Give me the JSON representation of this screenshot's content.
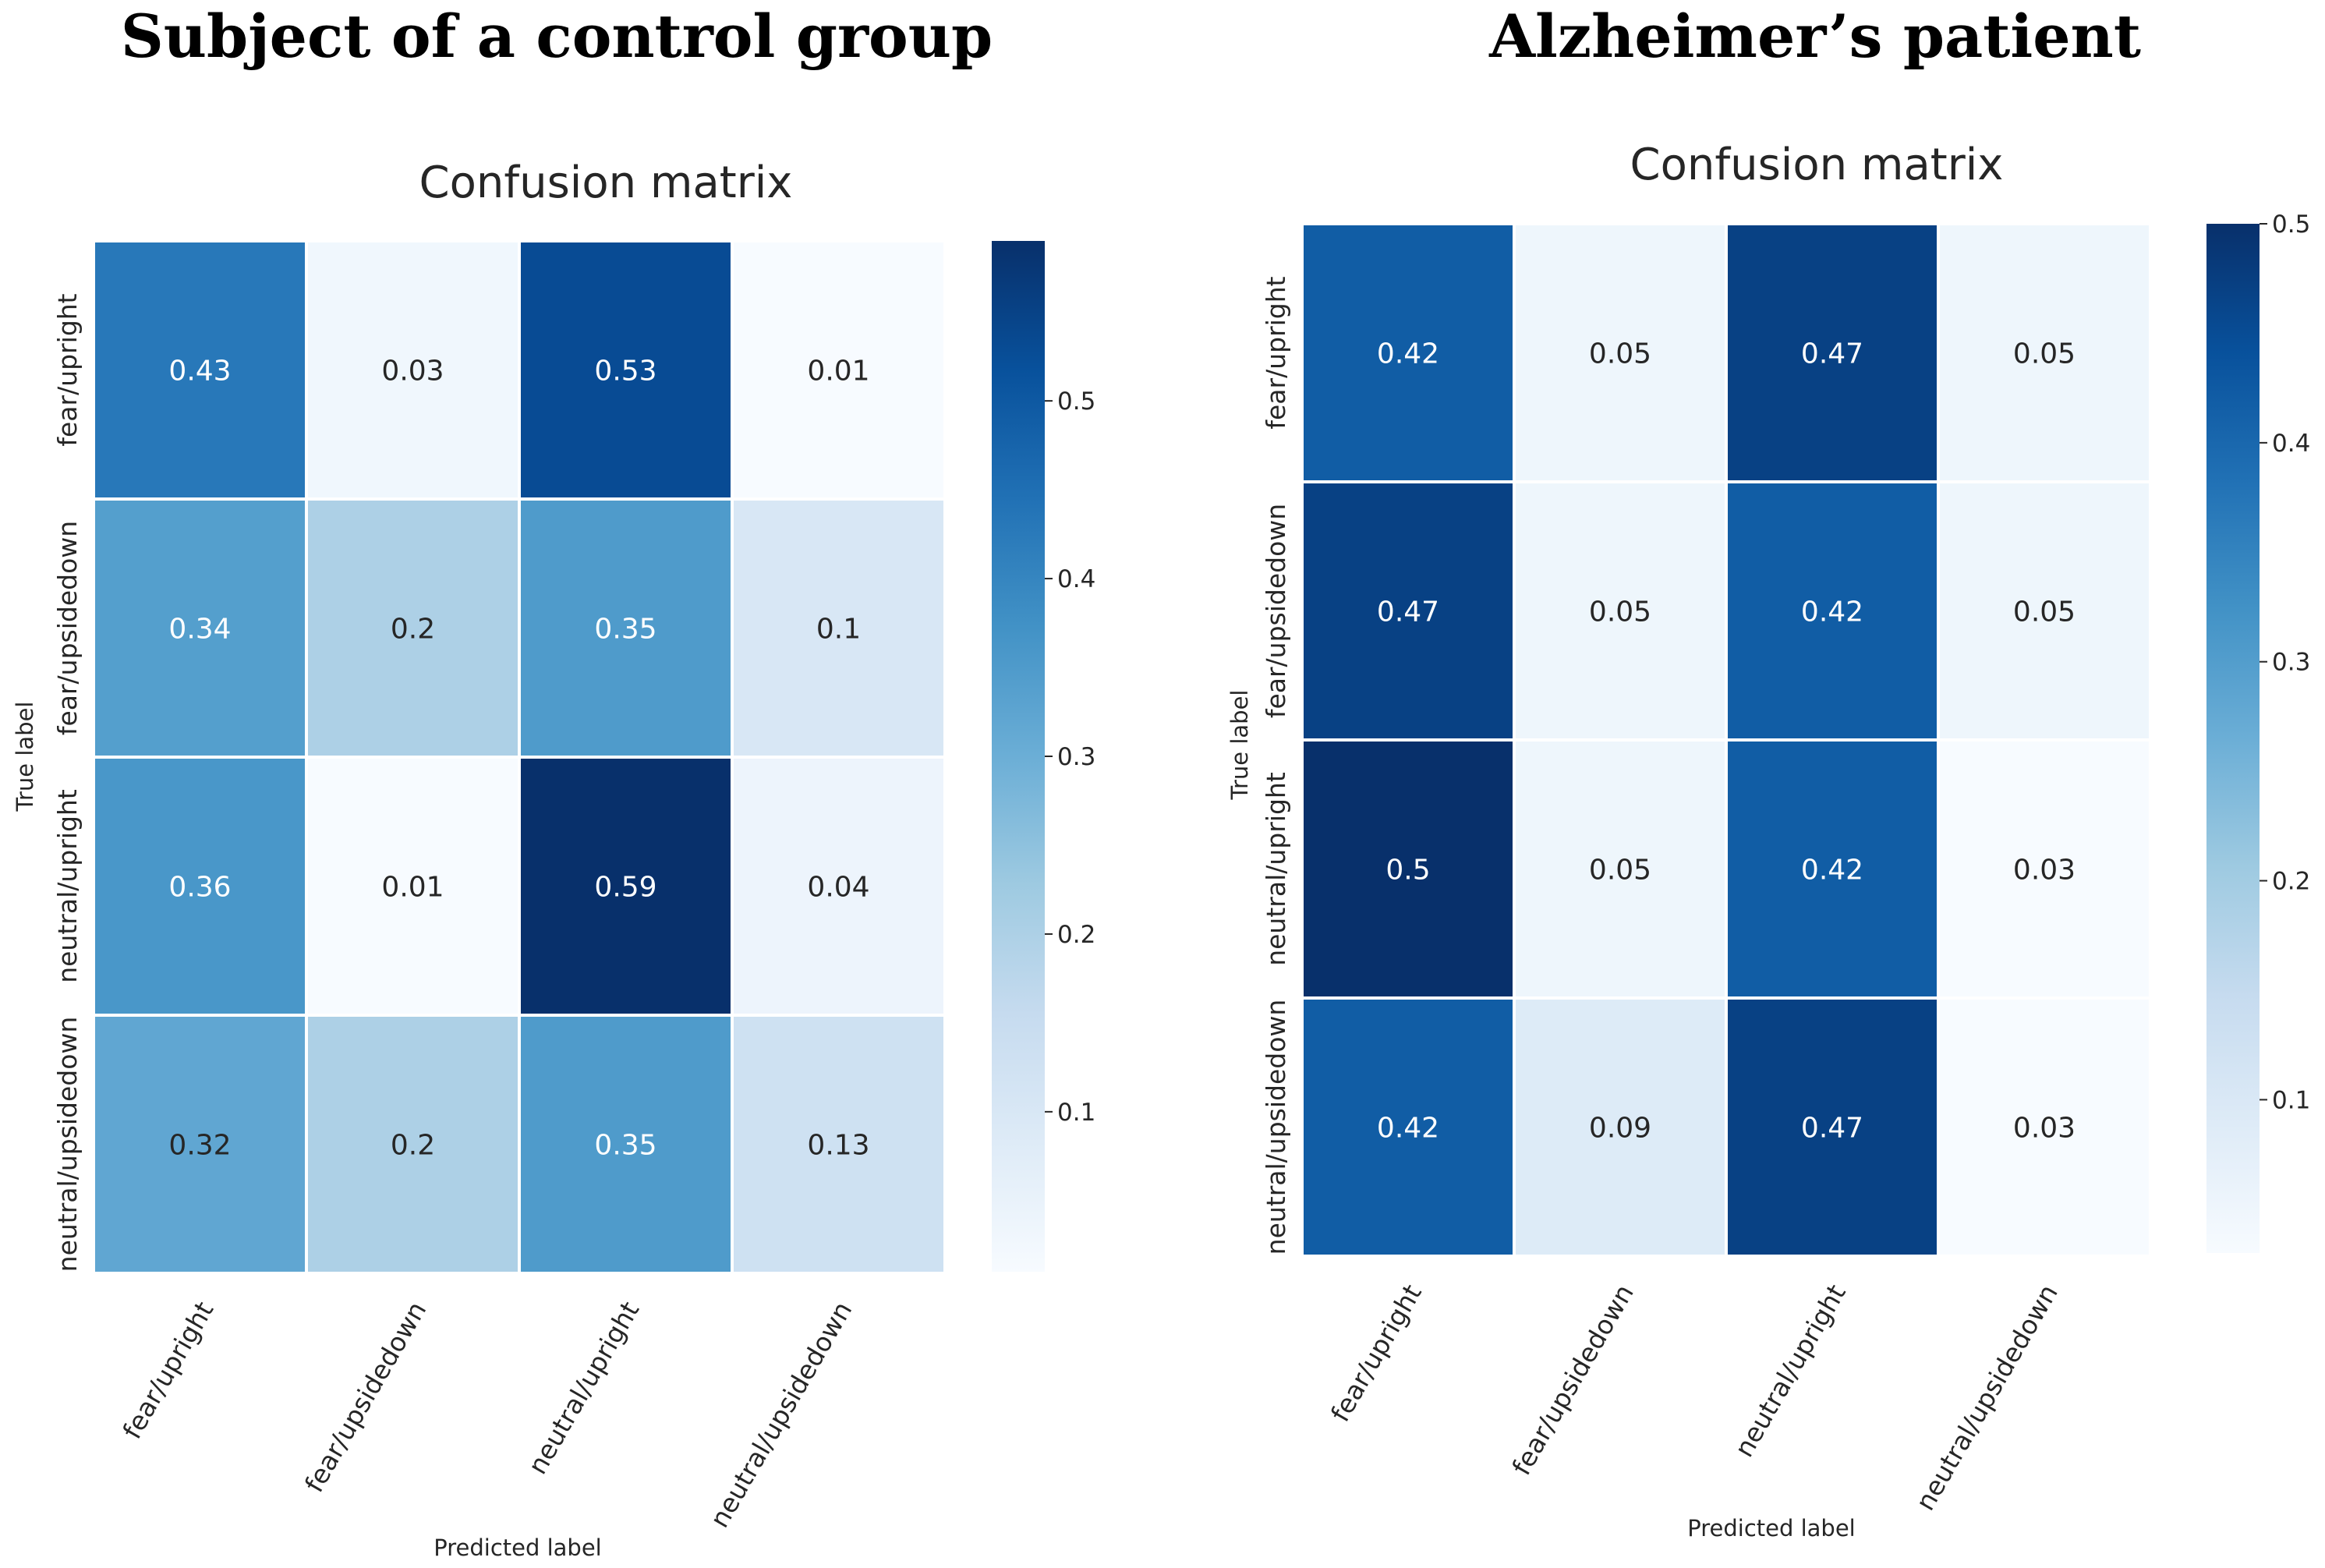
{
  "chart_data": [
    {
      "type": "heatmap",
      "heading": "Subject of a control group",
      "title": "Confusion matrix",
      "xlabel": "Predicted label",
      "ylabel": "True label",
      "categories": [
        "fear/upright",
        "fear/upsidedown",
        "neutral/upright",
        "neutral/upsidedown"
      ],
      "rows": [
        "fear/upright",
        "fear/upsidedown",
        "neutral/upright",
        "neutral/upsidedown"
      ],
      "values": [
        [
          0.43,
          0.03,
          0.53,
          0.01
        ],
        [
          0.34,
          0.2,
          0.35,
          0.1
        ],
        [
          0.36,
          0.01,
          0.59,
          0.04
        ],
        [
          0.32,
          0.2,
          0.35,
          0.13
        ]
      ],
      "labels": [
        [
          "0.43",
          "0.03",
          "0.53",
          "0.01"
        ],
        [
          "0.34",
          "0.2",
          "0.35",
          "0.1"
        ],
        [
          "0.36",
          "0.01",
          "0.59",
          "0.04"
        ],
        [
          "0.32",
          "0.2",
          "0.35",
          "0.13"
        ]
      ],
      "colormap": "Blues",
      "vrange": [
        0.01,
        0.59
      ],
      "colorbar_ticks": [
        0.1,
        0.2,
        0.3,
        0.4,
        0.5
      ],
      "colorbar_tick_labels": [
        "0.1",
        "0.2",
        "0.3",
        "0.4",
        "0.5"
      ]
    },
    {
      "type": "heatmap",
      "heading": "Alzheimer’s patient",
      "title": "Confusion matrix",
      "xlabel": "Predicted label",
      "ylabel": "True label",
      "categories": [
        "fear/upright",
        "fear/upsidedown",
        "neutral/upright",
        "neutral/upsidedown"
      ],
      "rows": [
        "fear/upright",
        "fear/upsidedown",
        "neutral/upright",
        "neutral/upsidedown"
      ],
      "values": [
        [
          0.42,
          0.05,
          0.47,
          0.05
        ],
        [
          0.47,
          0.05,
          0.42,
          0.05
        ],
        [
          0.5,
          0.05,
          0.42,
          0.03
        ],
        [
          0.42,
          0.09,
          0.47,
          0.03
        ]
      ],
      "labels": [
        [
          "0.42",
          "0.05",
          "0.47",
          "0.05"
        ],
        [
          "0.47",
          "0.05",
          "0.42",
          "0.05"
        ],
        [
          "0.5",
          "0.05",
          "0.42",
          "0.03"
        ],
        [
          "0.42",
          "0.09",
          "0.47",
          "0.03"
        ]
      ],
      "colormap": "Blues",
      "vrange": [
        0.03,
        0.5
      ],
      "colorbar_ticks": [
        0.1,
        0.2,
        0.3,
        0.4,
        0.5
      ],
      "colorbar_tick_labels": [
        "0.1",
        "0.2",
        "0.3",
        "0.4",
        "0.5"
      ]
    }
  ]
}
